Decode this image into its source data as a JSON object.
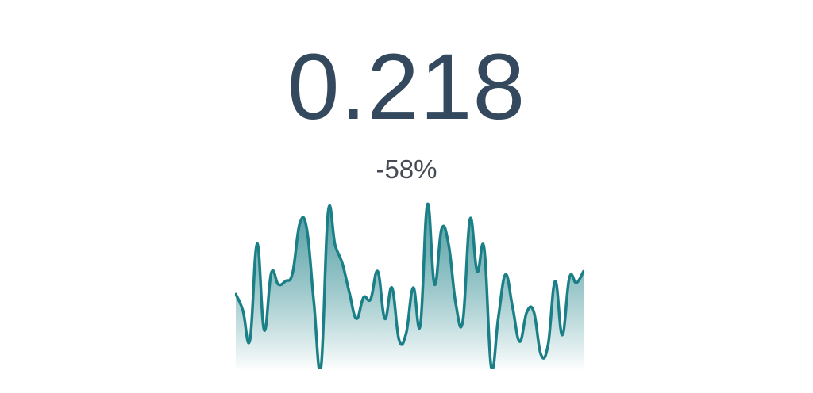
{
  "metric": {
    "value": "0.218",
    "change": "-58%"
  },
  "colors": {
    "value_text": "#34495e",
    "change_text": "#454a54",
    "line": "#1a7f86",
    "area_top": "#1a7f86",
    "area_bottom": "#ffffff"
  },
  "chart_data": {
    "type": "area",
    "title": "",
    "xlabel": "",
    "ylabel": "",
    "grid": false,
    "legend": "none",
    "ylim": [
      0,
      1
    ],
    "values": [
      0.45,
      0.35,
      0.17,
      0.76,
      0.23,
      0.58,
      0.51,
      0.53,
      0.58,
      0.88,
      0.85,
      0.4,
      0.0,
      0.95,
      0.75,
      0.64,
      0.46,
      0.3,
      0.43,
      0.42,
      0.59,
      0.3,
      0.49,
      0.17,
      0.21,
      0.49,
      0.26,
      1.0,
      0.51,
      0.85,
      0.75,
      0.39,
      0.29,
      0.91,
      0.59,
      0.73,
      0.0,
      0.31,
      0.57,
      0.37,
      0.16,
      0.34,
      0.34,
      0.08,
      0.14,
      0.53,
      0.2,
      0.55,
      0.52,
      0.59
    ]
  }
}
